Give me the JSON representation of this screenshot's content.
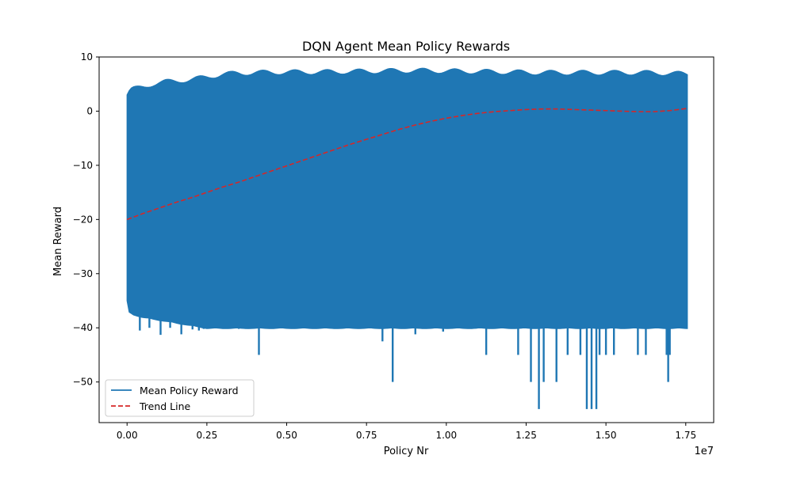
{
  "chart_data": {
    "type": "line",
    "title": "DQN Agent Mean Policy Rewards",
    "xlabel": "Policy Nr",
    "ylabel": "Mean Reward",
    "x_offset_label": "1e7",
    "xlim": [
      -0.0875,
      1.8375
    ],
    "ylim": [
      -57.5,
      10.0
    ],
    "x_ticks": [
      0.0,
      0.25,
      0.5,
      0.75,
      1.0,
      1.25,
      1.5,
      1.75
    ],
    "x_tick_labels": [
      "0.00",
      "0.25",
      "0.50",
      "0.75",
      "1.00",
      "1.25",
      "1.50",
      "1.75"
    ],
    "y_ticks": [
      -50,
      -40,
      -30,
      -20,
      -10,
      0,
      10
    ],
    "y_tick_labels": [
      "−50",
      "−40",
      "−30",
      "−20",
      "−10",
      "0",
      "10"
    ],
    "grid": false,
    "legend_position": "lower-left",
    "series": [
      {
        "name": "Mean Policy Reward",
        "style": "solid",
        "color": "#1f77b4",
        "x_range": [
          0.0,
          1.755
        ],
        "upper_envelope": [
          [
            0.0,
            3.0
          ],
          [
            0.005,
            3.5
          ],
          [
            0.015,
            4.0
          ],
          [
            0.03,
            4.2
          ],
          [
            0.05,
            4.5
          ],
          [
            0.08,
            5.0
          ],
          [
            0.12,
            5.4
          ],
          [
            0.16,
            5.6
          ],
          [
            0.2,
            5.8
          ],
          [
            0.25,
            6.3
          ],
          [
            0.3,
            6.8
          ],
          [
            0.35,
            7.0
          ],
          [
            0.4,
            7.1
          ],
          [
            0.5,
            7.2
          ],
          [
            0.6,
            7.2
          ],
          [
            0.7,
            7.3
          ],
          [
            0.8,
            7.4
          ],
          [
            0.9,
            7.5
          ],
          [
            1.0,
            7.4
          ],
          [
            1.1,
            7.3
          ],
          [
            1.2,
            7.2
          ],
          [
            1.3,
            7.1
          ],
          [
            1.4,
            7.1
          ],
          [
            1.5,
            7.1
          ],
          [
            1.6,
            7.1
          ],
          [
            1.7,
            7.0
          ],
          [
            1.755,
            6.8
          ]
        ],
        "lower_envelope": [
          [
            0.0,
            -35.0
          ],
          [
            0.005,
            -37.0
          ],
          [
            0.02,
            -37.5
          ],
          [
            0.05,
            -38.0
          ],
          [
            0.1,
            -38.5
          ],
          [
            0.15,
            -39.0
          ],
          [
            0.2,
            -39.5
          ],
          [
            0.25,
            -40.0
          ],
          [
            0.5,
            -40.0
          ],
          [
            0.75,
            -40.0
          ],
          [
            1.0,
            -40.0
          ],
          [
            1.25,
            -40.0
          ],
          [
            1.5,
            -40.0
          ],
          [
            1.755,
            -40.0
          ]
        ],
        "low_spikes": [
          [
            0.04,
            -40.5
          ],
          [
            0.07,
            -40.0
          ],
          [
            0.105,
            -41.3
          ],
          [
            0.135,
            -40.0
          ],
          [
            0.17,
            -41.2
          ],
          [
            0.205,
            -40.3
          ],
          [
            0.225,
            -40.5
          ],
          [
            0.24,
            -40.2
          ],
          [
            0.27,
            -40.0
          ],
          [
            0.3,
            -40.2
          ],
          [
            0.33,
            -40.0
          ],
          [
            0.35,
            -40.2
          ],
          [
            0.38,
            -40.2
          ],
          [
            0.413,
            -45.0
          ],
          [
            0.47,
            -40.0
          ],
          [
            0.52,
            -40.0
          ],
          [
            0.6,
            -40.0
          ],
          [
            0.67,
            -40.0
          ],
          [
            0.74,
            -40.0
          ],
          [
            0.8,
            -42.5
          ],
          [
            0.832,
            -50.0
          ],
          [
            0.903,
            -41.2
          ],
          [
            0.99,
            -40.7
          ],
          [
            1.125,
            -45.0
          ],
          [
            1.145,
            -40.0
          ],
          [
            1.225,
            -45.0
          ],
          [
            1.265,
            -50.0
          ],
          [
            1.29,
            -55.0
          ],
          [
            1.305,
            -50.0
          ],
          [
            1.345,
            -50.0
          ],
          [
            1.38,
            -45.0
          ],
          [
            1.42,
            -45.0
          ],
          [
            1.44,
            -55.0
          ],
          [
            1.455,
            -55.0
          ],
          [
            1.47,
            -55.0
          ],
          [
            1.48,
            -45.0
          ],
          [
            1.5,
            -45.0
          ],
          [
            1.525,
            -45.0
          ],
          [
            1.6,
            -45.0
          ],
          [
            1.625,
            -45.0
          ],
          [
            1.69,
            -45.0
          ],
          [
            1.695,
            -50.0
          ],
          [
            1.7,
            -45.0
          ]
        ]
      },
      {
        "name": "Trend Line",
        "style": "dashed",
        "color": "#d62728",
        "points": [
          [
            0.0,
            -20.0
          ],
          [
            0.05,
            -18.9
          ],
          [
            0.1,
            -17.9
          ],
          [
            0.15,
            -16.9
          ],
          [
            0.2,
            -16.0
          ],
          [
            0.25,
            -15.0
          ],
          [
            0.3,
            -14.0
          ],
          [
            0.35,
            -13.1
          ],
          [
            0.4,
            -12.1
          ],
          [
            0.45,
            -11.1
          ],
          [
            0.5,
            -10.1
          ],
          [
            0.55,
            -9.1
          ],
          [
            0.6,
            -8.1
          ],
          [
            0.65,
            -7.1
          ],
          [
            0.7,
            -6.1
          ],
          [
            0.75,
            -5.2
          ],
          [
            0.8,
            -4.3
          ],
          [
            0.85,
            -3.4
          ],
          [
            0.9,
            -2.6
          ],
          [
            0.95,
            -1.9
          ],
          [
            1.0,
            -1.3
          ],
          [
            1.05,
            -0.8
          ],
          [
            1.1,
            -0.4
          ],
          [
            1.15,
            -0.1
          ],
          [
            1.2,
            0.1
          ],
          [
            1.25,
            0.3
          ],
          [
            1.3,
            0.4
          ],
          [
            1.35,
            0.4
          ],
          [
            1.4,
            0.3
          ],
          [
            1.45,
            0.2
          ],
          [
            1.5,
            0.1
          ],
          [
            1.55,
            0.0
          ],
          [
            1.6,
            -0.1
          ],
          [
            1.65,
            -0.1
          ],
          [
            1.7,
            0.1
          ],
          [
            1.755,
            0.5
          ]
        ]
      }
    ]
  }
}
